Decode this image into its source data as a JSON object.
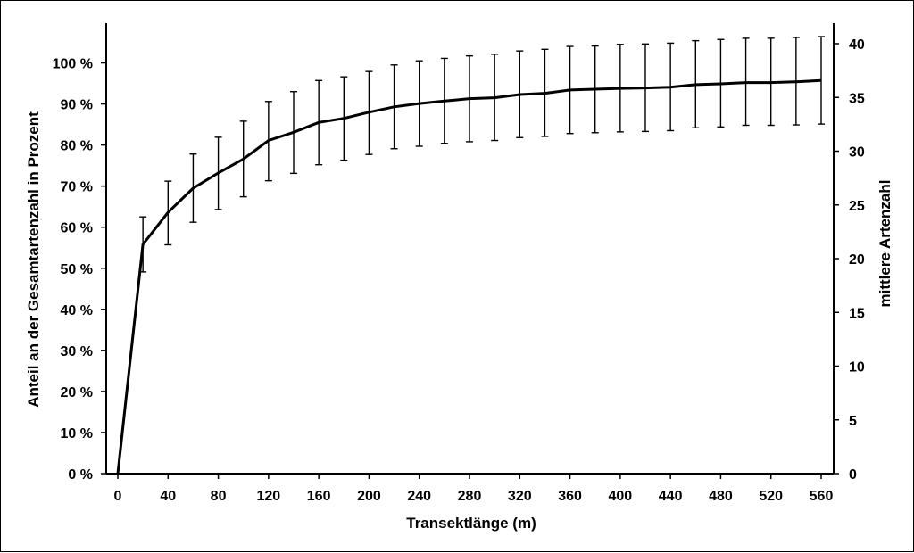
{
  "chart_data": {
    "type": "line",
    "xlabel": "Transektlänge (m)",
    "ylabel_left": "Anteil an der Gesamtartenzahl in Prozent",
    "ylabel_right": "mittlere Artenzahl",
    "x_ticks": [
      "0",
      "40",
      "80",
      "120",
      "160",
      "200",
      "240",
      "280",
      "320",
      "360",
      "400",
      "440",
      "480",
      "520",
      "560"
    ],
    "y_left_ticks": [
      "0 %",
      "10 %",
      "20 %",
      "30 %",
      "40 %",
      "50 %",
      "60 %",
      "70 %",
      "80 %",
      "90 %",
      "100 %"
    ],
    "y_right_ticks": [
      "0",
      "5",
      "10",
      "15",
      "20",
      "25",
      "30",
      "35",
      "40"
    ],
    "xlim": [
      0,
      560
    ],
    "ylim_left": [
      0,
      100
    ],
    "ylim_right": [
      0,
      41
    ],
    "grid": false,
    "legend": "none",
    "series": [
      {
        "x": [
          0,
          20,
          40,
          60,
          80,
          100,
          120,
          140,
          160,
          180,
          200,
          220,
          240,
          260,
          280,
          300,
          320,
          340,
          360,
          380,
          400,
          420,
          440,
          460,
          480,
          500,
          520,
          540,
          560
        ],
        "y_left": [
          0,
          55.8,
          63.6,
          69.5,
          73.2,
          76.6,
          81.1,
          83.1,
          85.5,
          86.5,
          88.0,
          89.3,
          90.1,
          90.7,
          91.3,
          91.5,
          92.3,
          92.6,
          93.4,
          93.6,
          93.8,
          93.9,
          94.1,
          94.7,
          94.9,
          95.2,
          95.2,
          95.4,
          95.7
        ],
        "err_upper_left": [
          0,
          62.5,
          71.2,
          77.8,
          81.9,
          85.8,
          90.6,
          93.0,
          95.7,
          96.6,
          97.9,
          99.5,
          100.5,
          101.1,
          101.7,
          102.1,
          102.9,
          103.3,
          104.0,
          104.1,
          104.5,
          104.6,
          104.8,
          105.4,
          105.7,
          106.0,
          106.0,
          106.2,
          106.4
        ],
        "err_lower_left": [
          0,
          49.1,
          55.7,
          61.2,
          64.3,
          67.4,
          71.3,
          73.1,
          75.2,
          76.3,
          77.7,
          79.1,
          79.7,
          80.4,
          80.8,
          81.1,
          81.8,
          82.1,
          82.8,
          83.0,
          83.2,
          83.3,
          83.5,
          84.2,
          84.4,
          84.8,
          84.8,
          84.9,
          85.1
        ]
      }
    ],
    "colors": {
      "line": "#000000",
      "axes": "#000000",
      "background": "#ffffff"
    }
  }
}
